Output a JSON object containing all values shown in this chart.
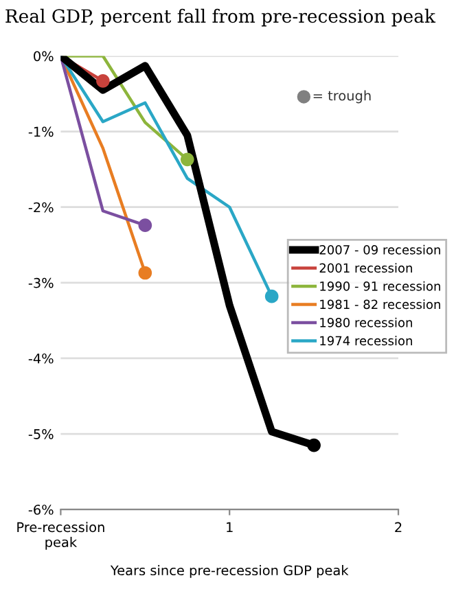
{
  "chart_data": {
    "type": "line",
    "title": "Real GDP, percent fall from pre-recession peak",
    "xlabel": "Years since pre-recession GDP peak",
    "x": [
      0,
      0.25,
      0.5,
      0.75,
      1,
      1.25,
      1.5
    ],
    "series": [
      {
        "name": "2007 - 09 recession",
        "color": "#000000",
        "values": [
          0,
          -0.45,
          -0.13,
          -1.05,
          -3.3,
          -4.97,
          -5.15
        ]
      },
      {
        "name": "2001 recession",
        "color": "#c8423c",
        "values": [
          0,
          -0.33,
          null,
          null,
          null,
          null,
          null
        ]
      },
      {
        "name": "1990 - 91 recession",
        "color": "#8db53c",
        "values": [
          0,
          0,
          -0.88,
          -1.37,
          null,
          null,
          null
        ]
      },
      {
        "name": "1981 - 82 recession",
        "color": "#e87d22",
        "values": [
          0,
          -1.22,
          -2.87,
          null,
          null,
          null,
          null
        ]
      },
      {
        "name": "1980 recession",
        "color": "#7b4fa0",
        "values": [
          0,
          -2.05,
          -2.24,
          null,
          null,
          null,
          null
        ]
      },
      {
        "name": "1974 recession",
        "color": "#2aa7c6",
        "values": [
          0,
          -0.87,
          -0.62,
          -1.62,
          -2.0,
          -3.18,
          null
        ]
      },
      {
        "type": "scatter",
        "x": [
          1.5,
          0.25,
          0.75,
          0.5,
          0.5,
          1.25
        ],
        "values": [
          -5.15,
          -0.33,
          -1.37,
          -2.87,
          -2.24,
          -3.18
        ],
        "colors": [
          "#000000",
          "#c8423c",
          "#8db53c",
          "#e87d22",
          "#7b4fa0",
          "#2aa7c6"
        ]
      }
    ],
    "annotations": [
      "= trough"
    ],
    "xlim": [
      0,
      2
    ],
    "ylim": [
      -6,
      0
    ],
    "xticks": [
      {
        "value": 0,
        "label": "Pre-recession\npeak"
      },
      1,
      2
    ],
    "yticks": [
      {
        "value": 0,
        "label": "0%"
      },
      {
        "value": -1,
        "label": "-1%"
      },
      {
        "value": -2,
        "label": "-2%"
      },
      {
        "value": -3,
        "label": "-3%"
      },
      {
        "value": -4,
        "label": "-4%"
      },
      {
        "value": -5,
        "label": "-5%"
      },
      {
        "value": -6,
        "label": "-6%"
      }
    ],
    "grid": "y",
    "legend": "right",
    "line_style": "solid"
  }
}
